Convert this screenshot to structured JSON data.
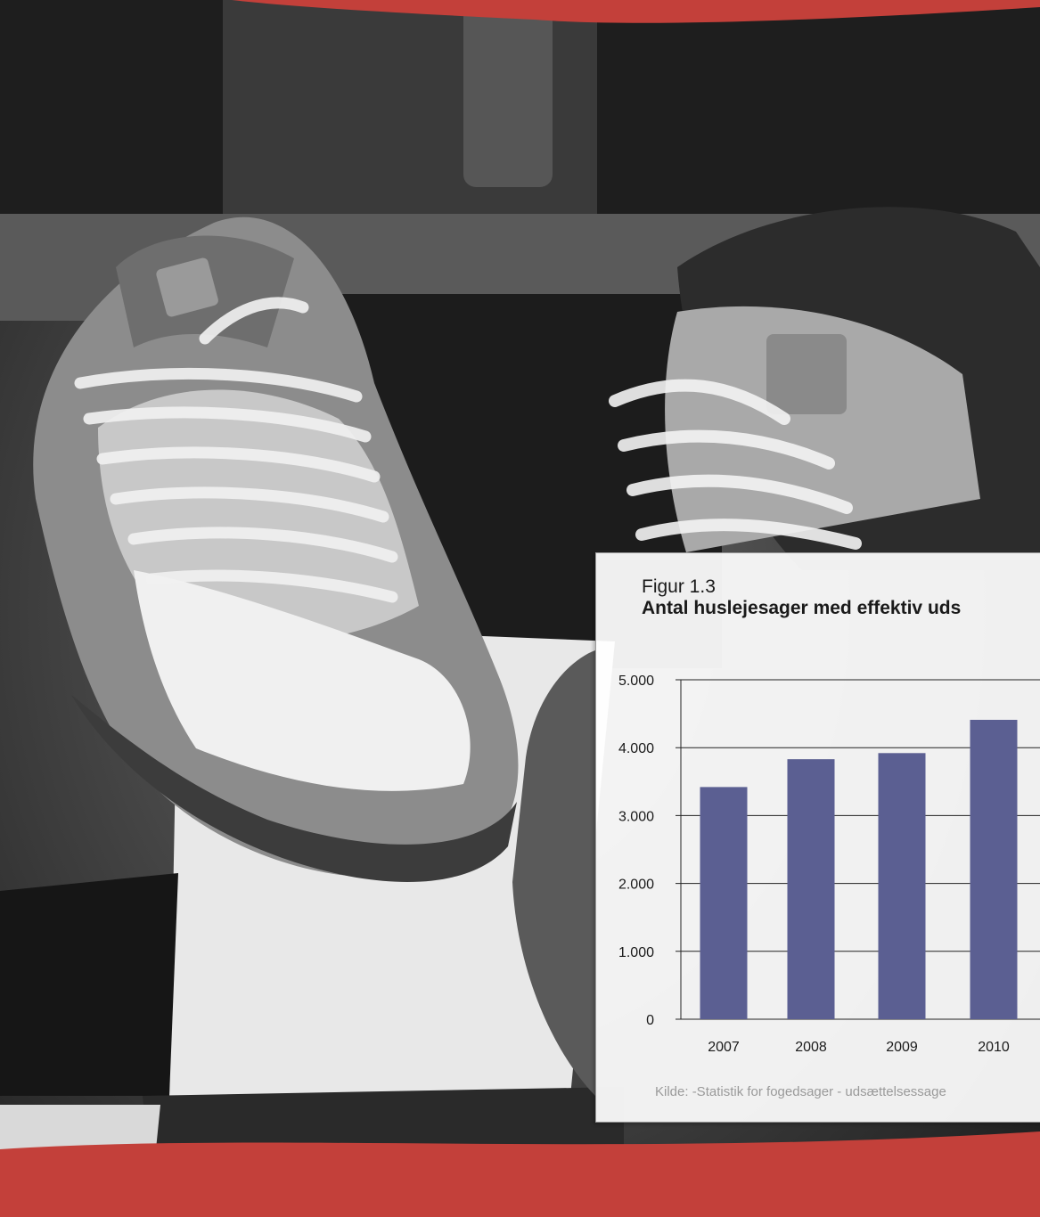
{
  "colors": {
    "bar": "#5b5f92",
    "frame_red": "#c3403a",
    "axis": "#222222"
  },
  "figure": {
    "label": "Figur 1.3",
    "title": "Antal huslejesager med effektiv uds",
    "source": "Kilde: -Statistik for fogedsager - udsættelsessage"
  },
  "chart_data": {
    "type": "bar",
    "title": "Antal huslejesager med effektiv uds",
    "categories": [
      "2007",
      "2008",
      "2009",
      "2010"
    ],
    "values": [
      3420,
      3830,
      3920,
      4410
    ],
    "ylim": [
      0,
      5000
    ],
    "yticks": [
      "0",
      "1.000",
      "2.000",
      "3.000",
      "4.000",
      "5.000"
    ],
    "grid": true,
    "xlabel": "",
    "ylabel": ""
  }
}
